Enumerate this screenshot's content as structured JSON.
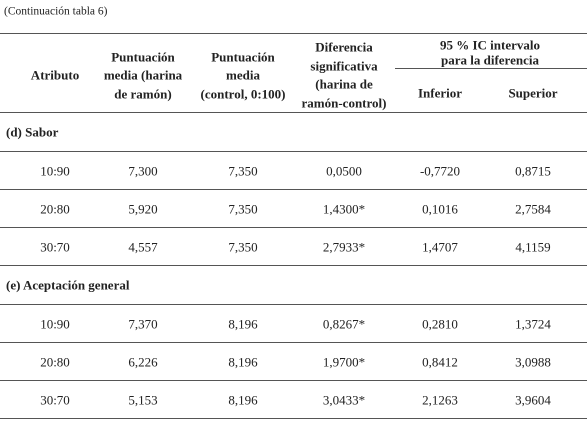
{
  "caption": "(Continuación tabla 6)",
  "header": {
    "columns": [
      [
        "Atributo"
      ],
      [
        "Puntuación",
        "media (harina",
        "de ramón)"
      ],
      [
        "Puntuación",
        "media",
        "(control, 0:100)"
      ],
      [
        "Diferencia",
        "significativa",
        "(harina de",
        "ramón-control)"
      ]
    ],
    "group": [
      "95 % IC intervalo",
      "para la diferencia"
    ],
    "subcolumns": [
      "Inferior",
      "Superior"
    ]
  },
  "sections": [
    {
      "title": "(d) Sabor",
      "rows": [
        [
          "10:90",
          "7,300",
          "7,350",
          "0,0500",
          "-0,7720",
          "0,8715"
        ],
        [
          "20:80",
          "5,920",
          "7,350",
          "1,4300*",
          "0,1016",
          "2,7584"
        ],
        [
          "30:70",
          "4,557",
          "7,350",
          "2,7933*",
          "1,4707",
          "4,1159"
        ]
      ]
    },
    {
      "title": "(e) Aceptación general",
      "rows": [
        [
          "10:90",
          "7,370",
          "8,196",
          "0,8267*",
          "0,2810",
          "1,3724"
        ],
        [
          "20:80",
          "6,226",
          "8,196",
          "1,9700*",
          "0,8412",
          "3,0988"
        ],
        [
          "30:70",
          "5,153",
          "8,196",
          "3,0433*",
          "2,1263",
          "3,9604"
        ]
      ]
    }
  ]
}
